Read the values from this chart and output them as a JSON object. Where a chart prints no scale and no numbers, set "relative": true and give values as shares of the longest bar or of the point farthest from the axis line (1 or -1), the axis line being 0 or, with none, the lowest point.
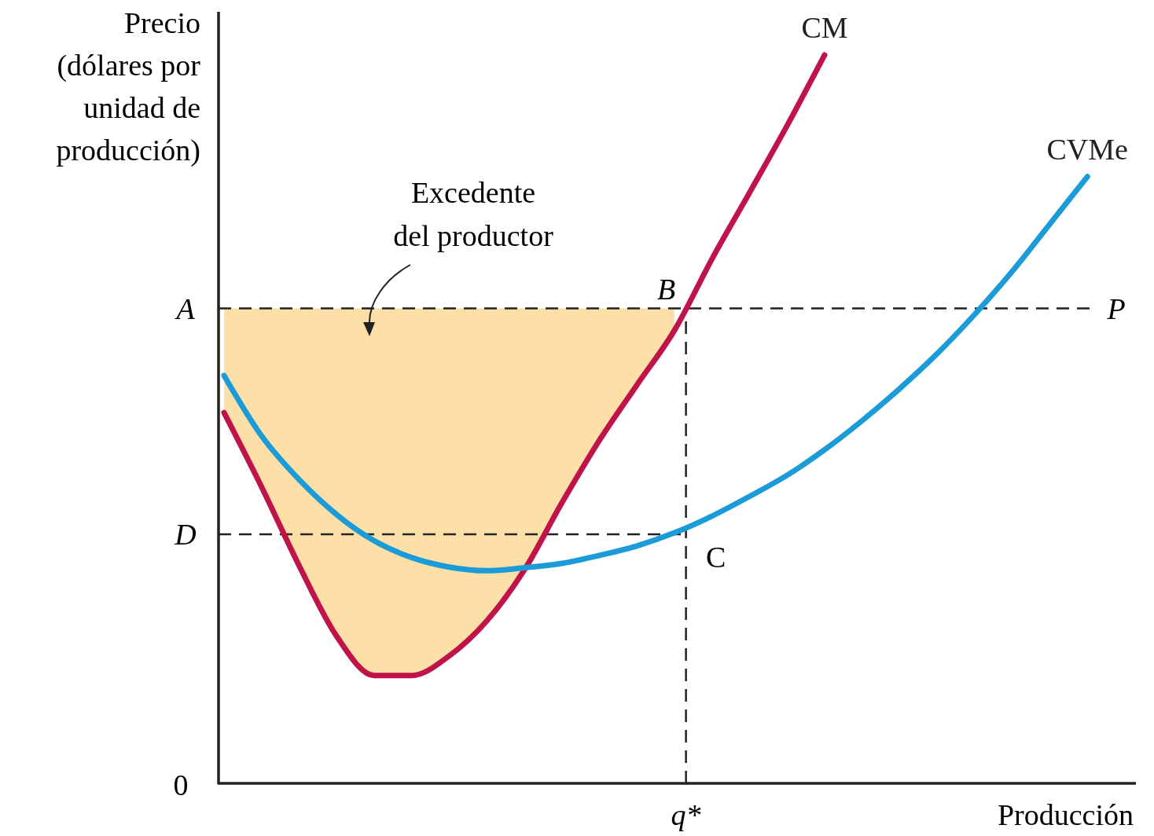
{
  "chart_data": {
    "type": "line",
    "relative": true,
    "xlabel": "Producción",
    "ylabel": "Precio (dólares por unidad de producción)",
    "categories": [
      null,
      null,
      null,
      null,
      null,
      null,
      null,
      null,
      null,
      null,
      null,
      null,
      null,
      null,
      null,
      null,
      null,
      null,
      null,
      null,
      null,
      null,
      null,
      null,
      null
    ],
    "series": [
      {
        "name": "CM",
        "color": "#c0134a",
        "values": [
          0.509,
          0.407,
          0.299,
          0.202,
          0.148,
          0.148,
          0.175,
          0.223,
          0.293,
          0.385,
          0.471,
          0.547,
          0.622,
          0.72,
          0.811,
          0.903,
          1.0,
          null,
          null,
          null,
          null,
          null,
          null,
          null,
          null
        ],
        "lower": [
          0.509,
          0.407,
          0.299,
          0.202,
          0.148,
          0.148,
          0.175,
          0.223,
          0.293,
          0.385,
          0.471,
          0.547,
          0.622,
          null,
          null,
          null,
          null,
          null,
          null,
          null,
          null,
          null,
          null,
          null,
          null
        ],
        "upper": [
          0.652,
          0.652,
          0.652,
          0.652,
          0.652,
          0.652,
          0.652,
          0.652,
          0.652,
          0.652,
          0.652,
          0.652,
          0.652,
          null,
          null,
          null,
          null,
          null,
          null,
          null,
          null,
          null,
          null,
          null,
          null
        ]
      },
      {
        "name": "CVMe",
        "color": "#1b9bd7",
        "values": [
          0.56,
          0.477,
          0.417,
          0.369,
          0.333,
          0.31,
          0.297,
          0.292,
          0.296,
          0.302,
          0.313,
          0.326,
          0.344,
          0.367,
          0.394,
          0.423,
          0.458,
          0.498,
          0.542,
          0.59,
          0.644,
          0.703,
          0.768,
          0.833,
          null
        ]
      }
    ],
    "ref_lines": [
      {
        "axis": "y",
        "value": 0.652,
        "label": "A",
        "line_style": "dashed"
      },
      {
        "axis": "y",
        "value": 0.342,
        "label": "D",
        "line_style": "dashed"
      }
    ],
    "annotations": [
      "Excedente del productor",
      "B",
      "C",
      "P",
      "0",
      "q*"
    ],
    "line_style": "solid"
  }
}
